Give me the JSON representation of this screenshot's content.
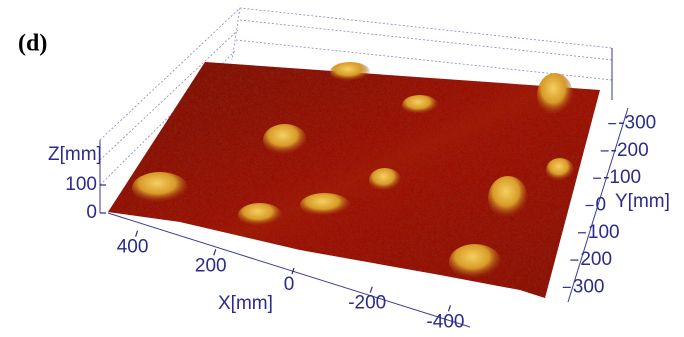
{
  "chart_data": {
    "type": "surface",
    "panel_label": "(d)",
    "x_label": "X[mm]",
    "y_label": "Y[mm]",
    "z_label": "Z[mm]",
    "xlim": [
      450,
      -450
    ],
    "xticks": [
      400,
      200,
      0,
      -200,
      -400
    ],
    "ylim": [
      -350,
      350
    ],
    "yticks": [
      -300,
      -200,
      -100,
      0,
      100,
      200,
      300
    ],
    "zlim": [
      0,
      250
    ],
    "zticks": [
      0,
      100
    ],
    "colormap": [
      "#5a0a08",
      "#9a1c10",
      "#c8501a",
      "#e8b030"
    ]
  }
}
